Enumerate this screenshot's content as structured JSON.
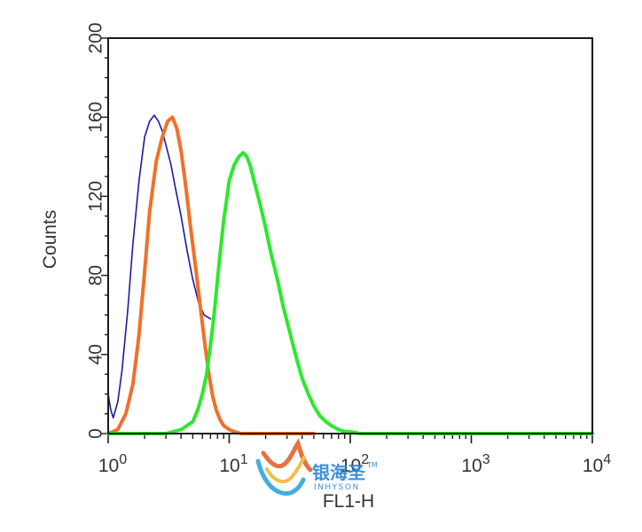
{
  "chart_data": {
    "type": "line",
    "title": "",
    "xlabel": "FL1-H",
    "ylabel": "Counts",
    "xscale": "log",
    "xlim": [
      1,
      10000
    ],
    "ylim": [
      0,
      200
    ],
    "grid": false,
    "legend": "none",
    "y_ticks": [
      "0",
      "40",
      "80",
      "120",
      "160",
      "200"
    ],
    "x_ticks": [
      {
        "value": 1,
        "base": "10",
        "exp": "0"
      },
      {
        "value": 10,
        "base": "10",
        "exp": "1"
      },
      {
        "value": 100,
        "base": "10",
        "exp": "2"
      },
      {
        "value": 1000,
        "base": "10",
        "exp": "3"
      },
      {
        "value": 10000,
        "base": "10",
        "exp": "4"
      }
    ],
    "series": [
      {
        "color": "#1a1aa8",
        "x": [
          1.0,
          1.05,
          1.1,
          1.2,
          1.3,
          1.45,
          1.6,
          1.8,
          2.0,
          2.2,
          2.4,
          2.6,
          2.8,
          3.0,
          3.3,
          3.6,
          4.0,
          4.5,
          5.0,
          5.6,
          6.2,
          7.0
        ],
        "y": [
          20,
          12,
          8,
          16,
          32,
          62,
          96,
          128,
          150,
          158,
          161,
          158,
          153,
          146,
          136,
          124,
          110,
          92,
          78,
          66,
          60,
          58
        ]
      },
      {
        "color": "#f07028",
        "x": [
          1.0,
          1.2,
          1.4,
          1.6,
          1.8,
          2.0,
          2.2,
          2.5,
          2.8,
          3.1,
          3.4,
          3.7,
          4.0,
          4.4,
          4.8,
          5.3,
          5.8,
          6.3,
          6.8,
          7.3,
          7.8,
          8.4,
          9.0,
          10.0,
          11.0,
          12.5,
          14.0,
          17.0,
          20.0,
          25.0,
          32.0,
          40.0,
          50.0
        ],
        "y": [
          0,
          2,
          10,
          25,
          50,
          82,
          112,
          138,
          150,
          158,
          160,
          154,
          143,
          124,
          104,
          83,
          63,
          45,
          30,
          19,
          12,
          7,
          4,
          2,
          1,
          0,
          0,
          0,
          0,
          0,
          0,
          0,
          0
        ]
      },
      {
        "color": "#2ee82e",
        "x": [
          1,
          2,
          3,
          4,
          5,
          5.5,
          6,
          6.5,
          7,
          7.5,
          8,
          8.5,
          9,
          9.5,
          10,
          11,
          12,
          13,
          14,
          15,
          16,
          18,
          20,
          22,
          25,
          28,
          32,
          36,
          40,
          45,
          50,
          56,
          63,
          70,
          80,
          90,
          100,
          120,
          150,
          200,
          300,
          500,
          1000,
          2000,
          5000,
          10000
        ],
        "y": [
          0,
          0,
          0,
          2,
          6,
          12,
          20,
          30,
          45,
          60,
          78,
          94,
          108,
          118,
          128,
          136,
          140,
          142,
          140,
          135,
          128,
          116,
          104,
          92,
          78,
          64,
          50,
          38,
          28,
          20,
          14,
          9,
          6,
          4,
          2,
          1,
          1,
          0,
          0,
          0,
          0,
          0,
          0,
          0,
          0,
          0
        ]
      }
    ]
  },
  "watermark": {
    "brand_cn": "银海圣",
    "tm": "TM",
    "brand_en": "INHYSON"
  }
}
